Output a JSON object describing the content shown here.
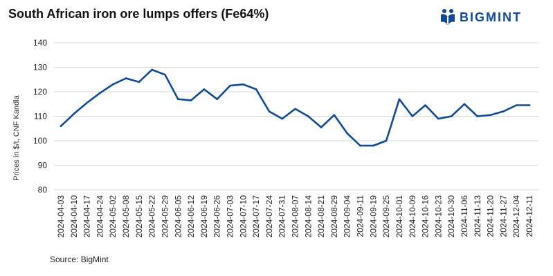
{
  "header": {
    "title": "South African iron ore lumps offers (Fe64%)",
    "logo_text": "BIGMINT",
    "logo_icon": "bigmint-logo-icon"
  },
  "footer": {
    "source": "Source: BigMint"
  },
  "colors": {
    "line": "#0d4a9b",
    "grid": "#d9d9d9",
    "brand": "#0d4a9b"
  },
  "chart_data": {
    "type": "line",
    "title": "South African iron ore lumps offers (Fe64%)",
    "xlabel": "",
    "ylabel": "Prices in $/t, CNF Kandla",
    "ylim": [
      80,
      140
    ],
    "yticks": [
      80,
      90,
      100,
      110,
      120,
      130,
      140
    ],
    "grid": true,
    "legend": "none",
    "categories": [
      "2024-04-03",
      "2024-04-10",
      "2024-04-17",
      "2024-04-24",
      "2024-05-02",
      "2024-05-08",
      "2024-05-15",
      "2024-05-22",
      "2024-05-29",
      "2024-06-05",
      "2024-06-12",
      "2024-06-19",
      "2024-06-26",
      "2024-07-03",
      "2024-07-10",
      "2024-07-17",
      "2024-07-24",
      "2024-07-31",
      "2024-08-07",
      "2024-08-14",
      "2024-08-21",
      "2024-08-29",
      "2024-09-04",
      "2024-09-11",
      "2024-09-19",
      "2024-09-25",
      "2024-10-01",
      "2024-10-09",
      "2024-10-16",
      "2024-10-23",
      "2024-10-30",
      "2024-11-06",
      "2024-11-13",
      "2024-11-20",
      "2024-11-27",
      "2024-12-04",
      "2024-12-11"
    ],
    "series": [
      {
        "values": [
          106,
          111,
          115.5,
          119.5,
          123,
          125.5,
          124,
          129,
          127,
          117,
          116.5,
          121,
          117,
          122.5,
          123,
          121,
          112,
          109,
          113,
          110,
          105.5,
          110.5,
          103,
          98,
          98,
          100,
          117,
          110,
          114.5,
          109,
          110,
          115,
          110,
          110.5,
          112,
          114.5,
          114.5
        ]
      }
    ]
  }
}
